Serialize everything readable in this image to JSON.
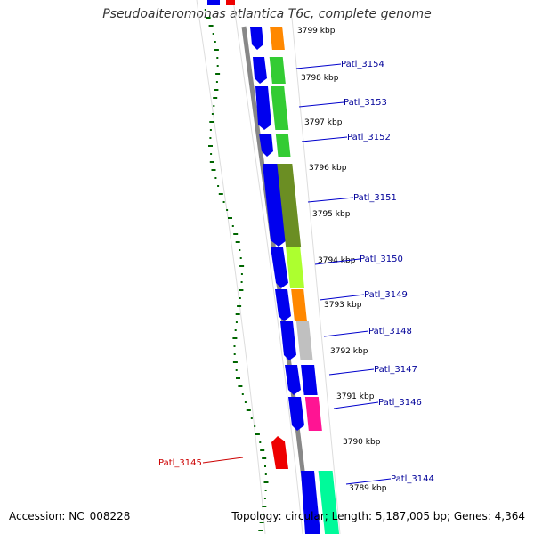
{
  "title": "Pseudoalteromonas atlantica T6c, complete genome",
  "footer": {
    "accession": "Accession: NC_008228",
    "summary": "Topology: circular; Length: 5,187,005 bp; Genes: 4,364"
  },
  "kbp_labels": [
    "3799 kbp",
    "3798 kbp",
    "3797 kbp",
    "3796 kbp",
    "3795 kbp",
    "3794 kbp",
    "3793 kbp",
    "3792 kbp",
    "3791 kbp",
    "3790 kbp",
    "3789 kbp"
  ],
  "genes": [
    {
      "name": "Patl_3154",
      "color": "#000099"
    },
    {
      "name": "Patl_3153",
      "color": "#000099"
    },
    {
      "name": "Patl_3152",
      "color": "#000099"
    },
    {
      "name": "Patl_3151",
      "color": "#000099"
    },
    {
      "name": "Patl_3150",
      "color": "#000099"
    },
    {
      "name": "Patl_3149",
      "color": "#000099"
    },
    {
      "name": "Patl_3148",
      "color": "#000099"
    },
    {
      "name": "Patl_3147",
      "color": "#000099"
    },
    {
      "name": "Patl_3146",
      "color": "#000099"
    },
    {
      "name": "Patl_3145",
      "color": "#cc0000"
    },
    {
      "name": "Patl_3144",
      "color": "#000099"
    }
  ],
  "colors": {
    "gene_arrow": "#0000ee",
    "reverse_gene": "#ee0000",
    "cog_orange": "#ff8800",
    "cog_green": "#33cc33",
    "cog_olive": "#6b8e23",
    "cog_lime": "#adff2f",
    "cog_gray": "#c0c0c0",
    "cog_blue": "#0000ee",
    "cog_pink": "#ff1493",
    "cog_teal": "#00fa9a",
    "backbone": "#888888",
    "gc_dots": "#006600"
  }
}
